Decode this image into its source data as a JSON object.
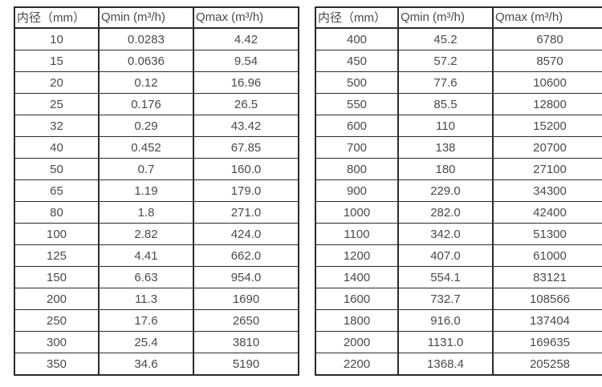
{
  "colors": {
    "background": "#ffffff",
    "border": "#2b2b2b",
    "text": "#4a4a4a"
  },
  "tables": [
    {
      "name": "flow-table-small-diameters",
      "headers": [
        "内径（mm）",
        "Qmin (m³/h)",
        "Qmax (m³/h)"
      ],
      "rows": [
        [
          "10",
          "0.0283",
          "4.42"
        ],
        [
          "15",
          "0.0636",
          "9.54"
        ],
        [
          "20",
          "0.12",
          "16.96"
        ],
        [
          "25",
          "0.176",
          "26.5"
        ],
        [
          "32",
          "0.29",
          "43.42"
        ],
        [
          "40",
          "0.452",
          "67.85"
        ],
        [
          "50",
          "0.7",
          "160.0"
        ],
        [
          "65",
          "1.19",
          "179.0"
        ],
        [
          "80",
          "1.8",
          "271.0"
        ],
        [
          "100",
          "2.82",
          "424.0"
        ],
        [
          "125",
          "4.41",
          "662.0"
        ],
        [
          "150",
          "6.63",
          "954.0"
        ],
        [
          "200",
          "11.3",
          "1690"
        ],
        [
          "250",
          "17.6",
          "2650"
        ],
        [
          "300",
          "25.4",
          "3810"
        ],
        [
          "350",
          "34.6",
          "5190"
        ]
      ]
    },
    {
      "name": "flow-table-large-diameters",
      "headers": [
        "内径（mm）",
        "Qmin (m³/h)",
        "Qmax (m³/h)"
      ],
      "rows": [
        [
          "400",
          "45.2",
          "6780"
        ],
        [
          "450",
          "57.2",
          "8570"
        ],
        [
          "500",
          "77.6",
          "10600"
        ],
        [
          "550",
          "85.5",
          "12800"
        ],
        [
          "600",
          "110",
          "15200"
        ],
        [
          "700",
          "138",
          "20700"
        ],
        [
          "800",
          "180",
          "27100"
        ],
        [
          "900",
          "229.0",
          "34300"
        ],
        [
          "1000",
          "282.0",
          "42400"
        ],
        [
          "1100",
          "342.0",
          "51300"
        ],
        [
          "1200",
          "407.0",
          "61000"
        ],
        [
          "1400",
          "554.1",
          "83121"
        ],
        [
          "1600",
          "732.7",
          "108566"
        ],
        [
          "1800",
          "916.0",
          "137404"
        ],
        [
          "2000",
          "1131.0",
          "169635"
        ],
        [
          "2200",
          "1368.4",
          "205258"
        ]
      ]
    }
  ]
}
